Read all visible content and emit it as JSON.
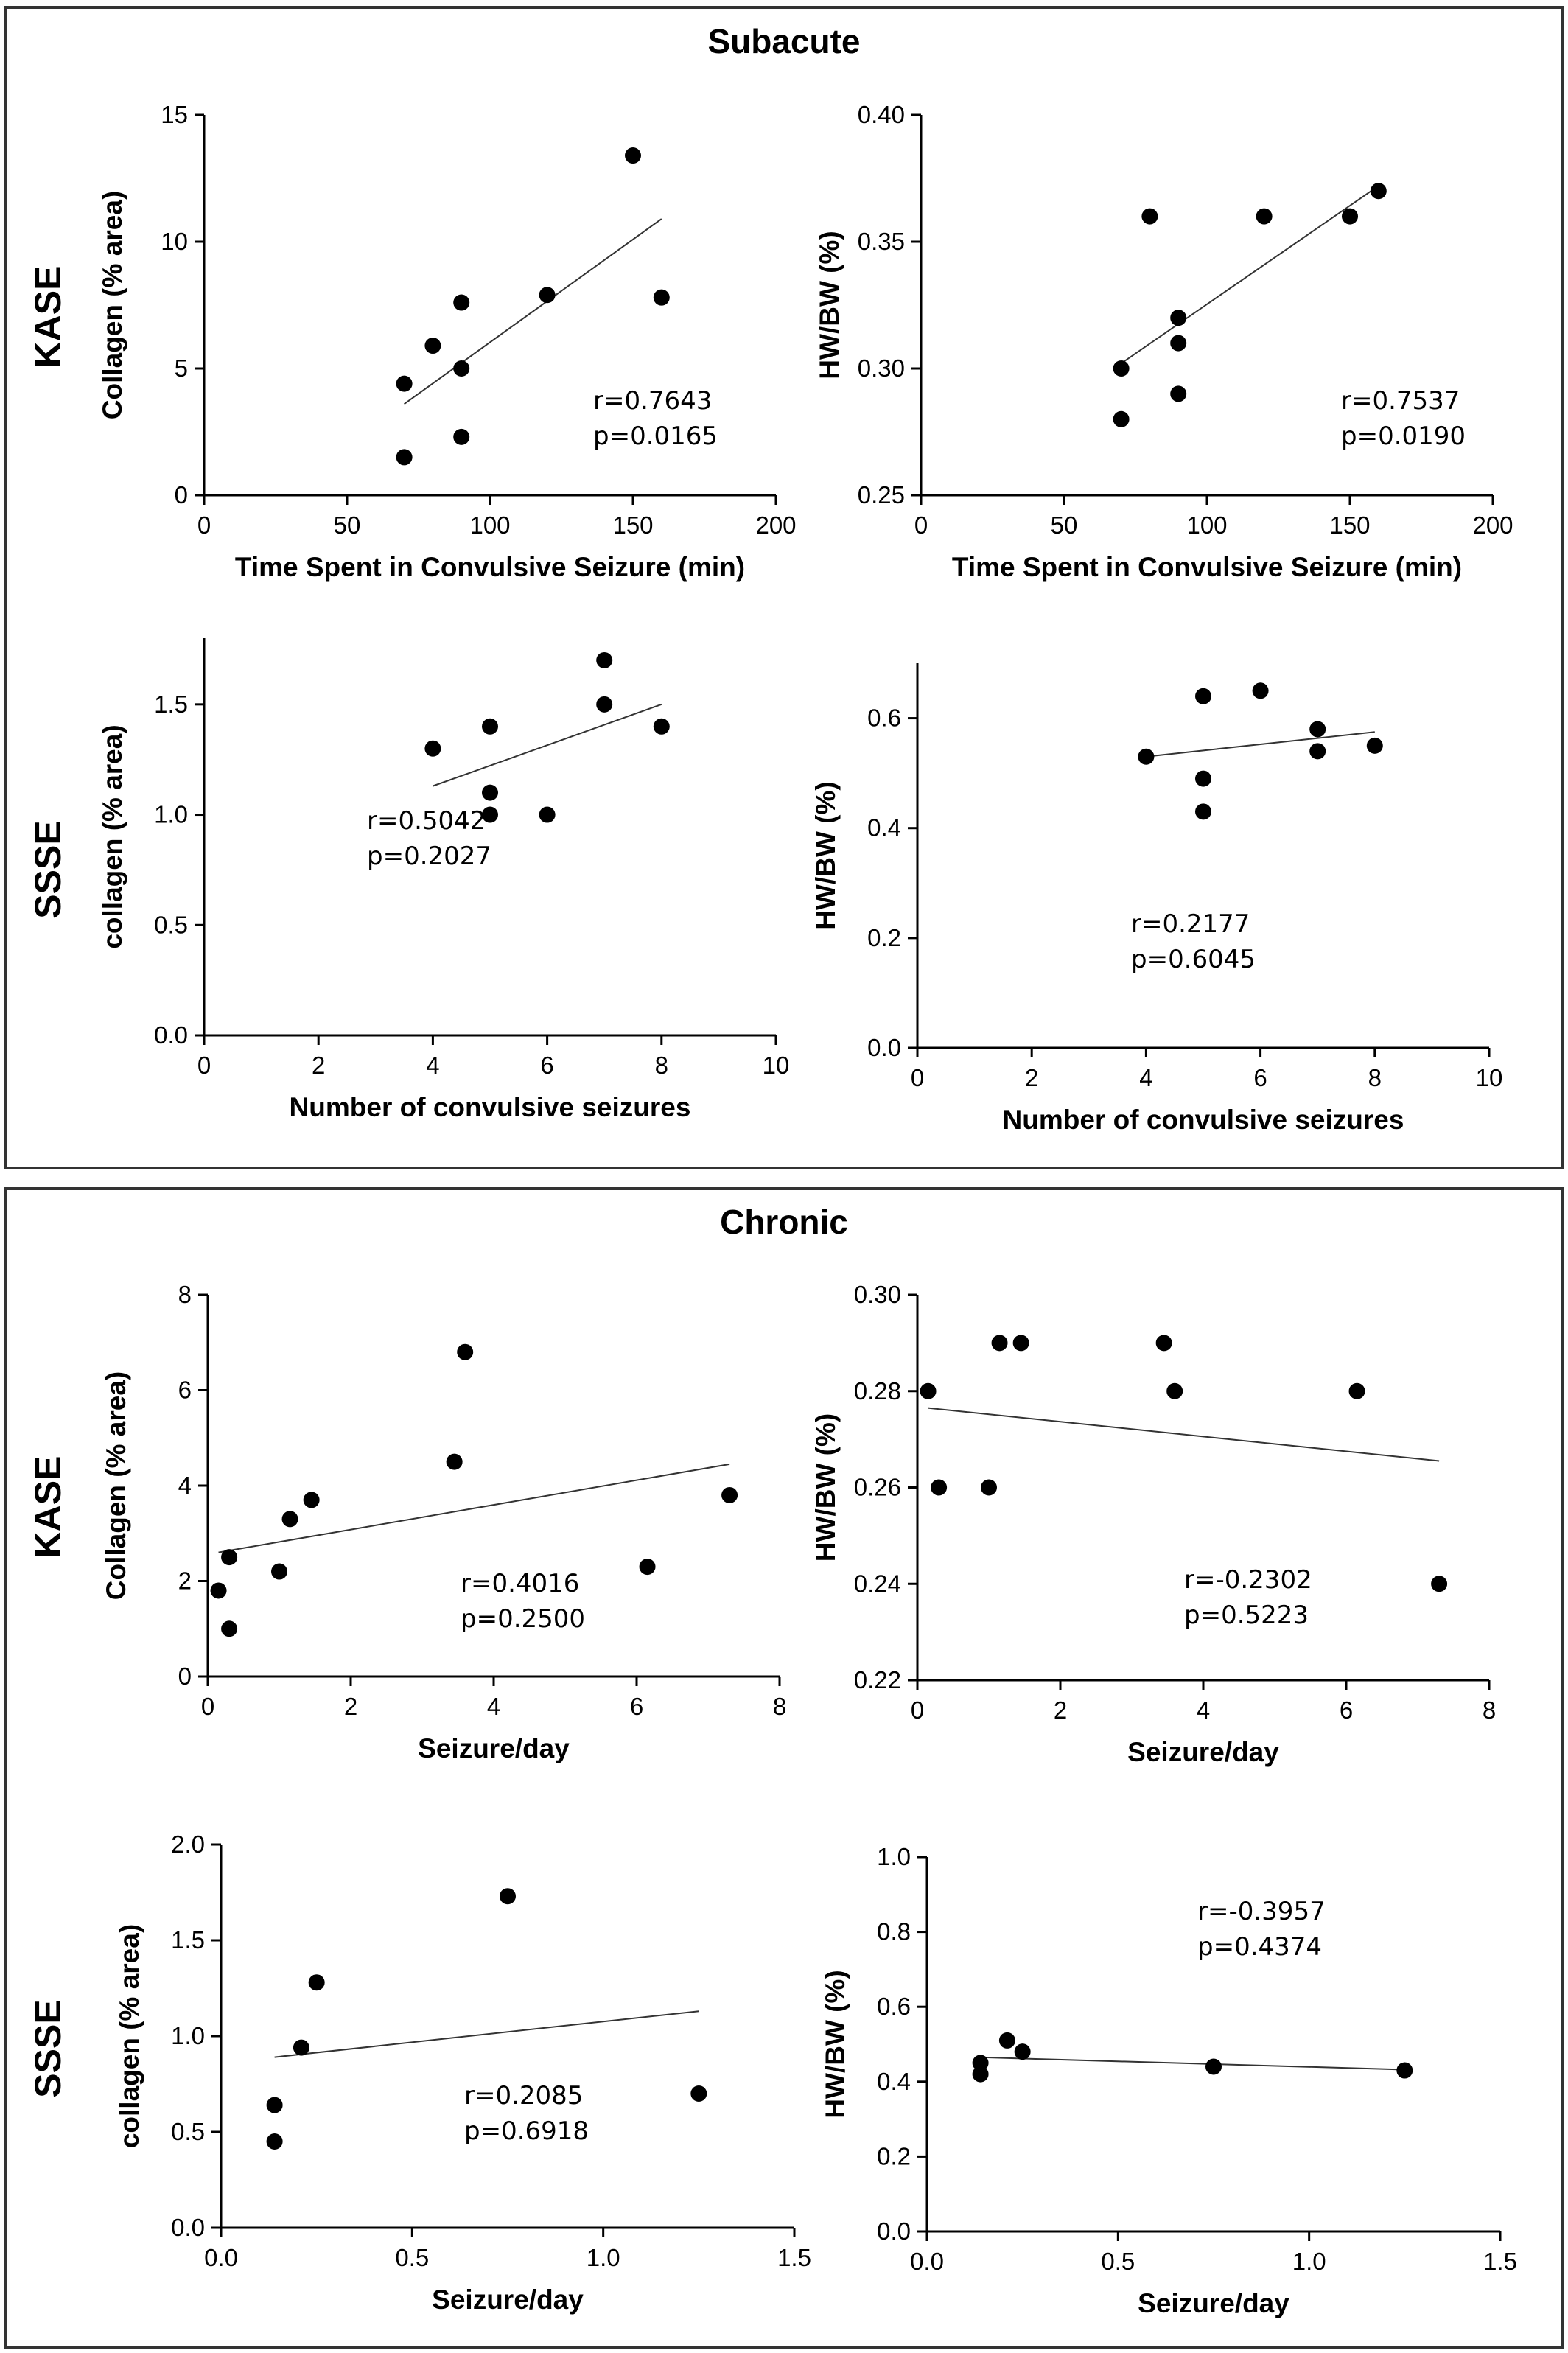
{
  "sections": [
    {
      "title": "Subacute",
      "rows": [
        "KASE",
        "SSSE"
      ]
    },
    {
      "title": "Chronic",
      "rows": [
        "KASE",
        "SSSE"
      ]
    }
  ],
  "chart_data": [
    {
      "type": "scatter",
      "section": "Subacute",
      "row": "KASE",
      "xlabel": "Time Spent in Convulsive Seizure (min)",
      "ylabel": "Collagen (% area)",
      "xlim": [
        0,
        200
      ],
      "ylim": [
        0,
        15
      ],
      "xticks": [
        "0",
        "50",
        "100",
        "150",
        "200"
      ],
      "yticks": [
        "0",
        "5",
        "10",
        "15"
      ],
      "points": [
        [
          70,
          1.5
        ],
        [
          70,
          4.4
        ],
        [
          80,
          5.9
        ],
        [
          90,
          7.6
        ],
        [
          90,
          5.0
        ],
        [
          90,
          2.3
        ],
        [
          120,
          7.9
        ],
        [
          150,
          13.4
        ],
        [
          160,
          7.8
        ]
      ],
      "fit": [
        [
          70,
          3.6
        ],
        [
          160,
          10.9
        ]
      ],
      "annotation": [
        "r=0.7643",
        "p=0.0165"
      ]
    },
    {
      "type": "scatter",
      "section": "Subacute",
      "row": "KASE",
      "xlabel": "Time Spent in Convulsive Seizure (min)",
      "ylabel": "HW/BW (%)",
      "xlim": [
        0,
        200
      ],
      "ylim": [
        0.25,
        0.4
      ],
      "xticks": [
        "0",
        "50",
        "100",
        "150",
        "200"
      ],
      "yticks": [
        "0.25",
        "0.30",
        "0.35",
        "0.40"
      ],
      "points": [
        [
          70,
          0.3
        ],
        [
          70,
          0.28
        ],
        [
          80,
          0.36
        ],
        [
          90,
          0.32
        ],
        [
          90,
          0.31
        ],
        [
          90,
          0.29
        ],
        [
          120,
          0.36
        ],
        [
          150,
          0.36
        ],
        [
          160,
          0.37
        ]
      ],
      "fit": [
        [
          70,
          0.302
        ],
        [
          160,
          0.372
        ]
      ],
      "annotation": [
        "r=0.7537",
        "p=0.0190"
      ]
    },
    {
      "type": "scatter",
      "section": "Subacute",
      "row": "SSSE",
      "xlabel": "Number of convulsive seizures",
      "ylabel": "collagen (% area)",
      "xlim": [
        0,
        10
      ],
      "ylim": [
        0,
        1.8
      ],
      "xticks": [
        "0",
        "2",
        "4",
        "6",
        "8",
        "10"
      ],
      "yticks": [
        "0.0",
        "0.5",
        "1.0",
        "1.5"
      ],
      "points": [
        [
          4,
          1.3
        ],
        [
          5,
          1.4
        ],
        [
          5,
          1.1
        ],
        [
          5,
          1.0
        ],
        [
          6,
          1.0
        ],
        [
          7,
          1.7
        ],
        [
          7,
          1.5
        ],
        [
          8,
          1.4
        ]
      ],
      "fit": [
        [
          4,
          1.13
        ],
        [
          8,
          1.5
        ]
      ],
      "annotation": [
        "r=0.5042",
        "p=0.2027"
      ]
    },
    {
      "type": "scatter",
      "section": "Subacute",
      "row": "SSSE",
      "xlabel": "Number of convulsive seizures",
      "ylabel": "HW/BW (%)",
      "xlim": [
        0,
        10
      ],
      "ylim": [
        0,
        0.7
      ],
      "xticks": [
        "0",
        "2",
        "4",
        "6",
        "8",
        "10"
      ],
      "yticks": [
        "0.0",
        "0.2",
        "0.4",
        "0.6"
      ],
      "points": [
        [
          4,
          0.53
        ],
        [
          5,
          0.64
        ],
        [
          5,
          0.49
        ],
        [
          5,
          0.43
        ],
        [
          6,
          0.65
        ],
        [
          7,
          0.58
        ],
        [
          7,
          0.54
        ],
        [
          8,
          0.55
        ]
      ],
      "fit": [
        [
          4,
          0.53
        ],
        [
          8,
          0.575
        ]
      ],
      "annotation": [
        "r=0.2177",
        "p=0.6045"
      ]
    },
    {
      "type": "scatter",
      "section": "Chronic",
      "row": "KASE",
      "xlabel": "Seizure/day",
      "ylabel": "Collagen (% area)",
      "xlim": [
        0,
        8
      ],
      "ylim": [
        0,
        8
      ],
      "xticks": [
        "0",
        "2",
        "4",
        "6",
        "8"
      ],
      "yticks": [
        "0",
        "2",
        "4",
        "6",
        "8"
      ],
      "points": [
        [
          0.15,
          1.8
        ],
        [
          0.3,
          2.5
        ],
        [
          0.3,
          1.0
        ],
        [
          1.0,
          2.2
        ],
        [
          1.15,
          3.3
        ],
        [
          1.45,
          3.7
        ],
        [
          3.45,
          4.5
        ],
        [
          3.6,
          6.8
        ],
        [
          6.15,
          2.3
        ],
        [
          7.3,
          3.8
        ]
      ],
      "fit": [
        [
          0.15,
          2.6
        ],
        [
          7.3,
          4.45
        ]
      ],
      "annotation": [
        "r=0.4016",
        "p=0.2500"
      ]
    },
    {
      "type": "scatter",
      "section": "Chronic",
      "row": "KASE",
      "xlabel": "Seizure/day",
      "ylabel": "HW/BW (%)",
      "xlim": [
        0,
        8
      ],
      "ylim": [
        0.22,
        0.3
      ],
      "xticks": [
        "0",
        "2",
        "4",
        "6",
        "8"
      ],
      "yticks": [
        "0.22",
        "0.24",
        "0.26",
        "0.28",
        "0.30"
      ],
      "points": [
        [
          0.15,
          0.28
        ],
        [
          0.3,
          0.26
        ],
        [
          1.0,
          0.26
        ],
        [
          1.15,
          0.29
        ],
        [
          1.45,
          0.29
        ],
        [
          3.45,
          0.29
        ],
        [
          3.6,
          0.28
        ],
        [
          6.15,
          0.28
        ],
        [
          7.3,
          0.24
        ]
      ],
      "fit": [
        [
          0.15,
          0.2765
        ],
        [
          7.3,
          0.2655
        ]
      ],
      "annotation": [
        "r=-0.2302",
        "p=0.5223"
      ]
    },
    {
      "type": "scatter",
      "section": "Chronic",
      "row": "SSSE",
      "xlabel": "Seizure/day",
      "ylabel": "collagen (% area)",
      "xlim": [
        0,
        1.5
      ],
      "ylim": [
        0,
        2.0
      ],
      "xticks": [
        "0.0",
        "0.5",
        "1.0",
        "1.5"
      ],
      "yticks": [
        "0.0",
        "0.5",
        "1.0",
        "1.5",
        "2.0"
      ],
      "points": [
        [
          0.14,
          0.64
        ],
        [
          0.14,
          0.45
        ],
        [
          0.21,
          0.94
        ],
        [
          0.25,
          1.28
        ],
        [
          0.75,
          1.73
        ],
        [
          1.25,
          0.7
        ]
      ],
      "fit": [
        [
          0.14,
          0.89
        ],
        [
          1.25,
          1.13
        ]
      ],
      "annotation": [
        "r=0.2085",
        "p=0.6918"
      ]
    },
    {
      "type": "scatter",
      "section": "Chronic",
      "row": "SSSE",
      "xlabel": "Seizure/day",
      "ylabel": "HW/BW (%)",
      "xlim": [
        0,
        1.5
      ],
      "ylim": [
        0,
        1.0
      ],
      "xticks": [
        "0.0",
        "0.5",
        "1.0",
        "1.5"
      ],
      "yticks": [
        "0.0",
        "0.2",
        "0.4",
        "0.6",
        "0.8",
        "1.0"
      ],
      "points": [
        [
          0.14,
          0.45
        ],
        [
          0.14,
          0.42
        ],
        [
          0.21,
          0.51
        ],
        [
          0.25,
          0.48
        ],
        [
          0.75,
          0.44
        ],
        [
          1.25,
          0.43
        ]
      ],
      "fit": [
        [
          0.14,
          0.465
        ],
        [
          1.25,
          0.432
        ]
      ],
      "annotation": [
        "r=-0.3957",
        "p=0.4374"
      ]
    }
  ]
}
